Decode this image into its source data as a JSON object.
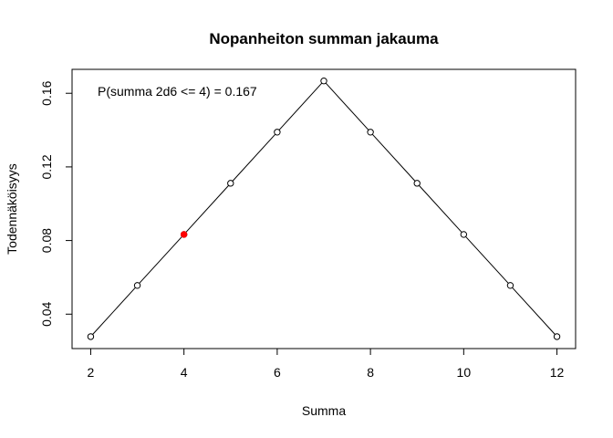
{
  "chart_data": {
    "type": "line",
    "title": "Nopanheiton summan jakauma",
    "xlabel": "Summa",
    "ylabel": "Todennäköisyys",
    "xlim": [
      1.6,
      12.4
    ],
    "ylim": [
      0.0213,
      0.173
    ],
    "x_ticks": [
      2,
      4,
      6,
      8,
      10,
      12
    ],
    "y_ticks": [
      0.04,
      0.08,
      0.12,
      0.16
    ],
    "x_tick_labels": [
      "2",
      "4",
      "6",
      "8",
      "10",
      "12"
    ],
    "y_tick_labels": [
      "0.04",
      "0.08",
      "0.12",
      "0.16"
    ],
    "grid": false,
    "series": [
      {
        "x": [
          2,
          3,
          4,
          5,
          6,
          7,
          8,
          9,
          10,
          11,
          12
        ],
        "values": [
          0.0278,
          0.0556,
          0.0833,
          0.1111,
          0.1389,
          0.1667,
          0.1389,
          0.1111,
          0.0833,
          0.0556,
          0.0278
        ],
        "line_color": "#000000",
        "marker": "open-circle"
      }
    ],
    "highlight": {
      "x": 4,
      "y": 0.0833,
      "color": "#ff0000"
    },
    "annotation": "P(summa 2d6 <= 4) = 0.167"
  }
}
